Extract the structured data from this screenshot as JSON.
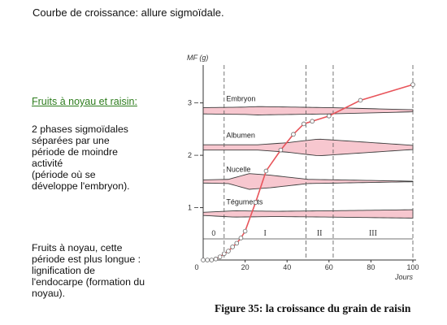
{
  "document": {
    "title": "Courbe de croissance: allure sigmoïdale.",
    "subtitle": "Fruits à noyau et raisin:",
    "paragraph_1": "2 phases sigmoïdales\nséparées par une\npériode de moindre\nactivité\n(période où se\ndéveloppe l'embryon).",
    "paragraph_2": "Fruits à noyau, cette\npériode est plus longue :\nlignification de\nl'endocarpe (formation du\nnoyau).",
    "figure_caption": "Figure 35: la croissance du grain de raisin"
  },
  "chart_data": {
    "type": "line",
    "ylabel": "MF (g)",
    "xlabel": "Jours",
    "xlim": [
      0,
      100
    ],
    "ylim": [
      0,
      3.6
    ],
    "x_ticks": [
      20,
      40,
      60,
      80,
      100
    ],
    "y_ticks": [
      1,
      2,
      3
    ],
    "origin_label": "0",
    "series": [
      {
        "color": "#e8545a",
        "x": [
          0,
          2,
          4,
          6,
          8,
          10,
          12,
          14,
          16,
          18,
          20,
          25,
          30,
          37,
          43,
          48,
          52,
          60,
          75,
          100
        ],
        "y": [
          0,
          0,
          0,
          0.02,
          0.06,
          0.12,
          0.17,
          0.25,
          0.32,
          0.42,
          0.55,
          1.1,
          1.7,
          2.1,
          2.4,
          2.6,
          2.65,
          2.75,
          3.05,
          3.35
        ]
      }
    ],
    "phase_boundaries": [
      10,
      49,
      62
    ],
    "phases": [
      "0",
      "I",
      "II",
      "III"
    ],
    "bands": [
      {
        "label": "Embryon",
        "center": 2.85,
        "widths": [
          [
            0,
            0.06
          ],
          [
            20,
            0.07
          ],
          [
            26,
            0.08
          ],
          [
            60,
            0.06
          ],
          [
            100,
            0.02
          ]
        ]
      },
      {
        "label": "Albumen",
        "center": 2.15,
        "widths": [
          [
            0,
            0.05
          ],
          [
            26,
            0.05
          ],
          [
            40,
            0.09
          ],
          [
            55,
            0.16
          ],
          [
            100,
            0.04
          ]
        ]
      },
      {
        "label": "Nucelle",
        "center": 1.5,
        "widths": [
          [
            0,
            0.03
          ],
          [
            12,
            0.04
          ],
          [
            22,
            0.15
          ],
          [
            32,
            0.12
          ],
          [
            50,
            0.04
          ],
          [
            100,
            0.005
          ]
        ]
      },
      {
        "label": "Téguments",
        "center": 0.88,
        "widths": [
          [
            0,
            0.03
          ],
          [
            15,
            0.06
          ],
          [
            35,
            0.05
          ],
          [
            60,
            0.06
          ],
          [
            100,
            0.08
          ]
        ]
      }
    ],
    "colors": {
      "curve": "#e8545a",
      "band_fill": "#f7c7cf",
      "band_stroke": "#3b3b3b",
      "axis": "#333333"
    }
  }
}
